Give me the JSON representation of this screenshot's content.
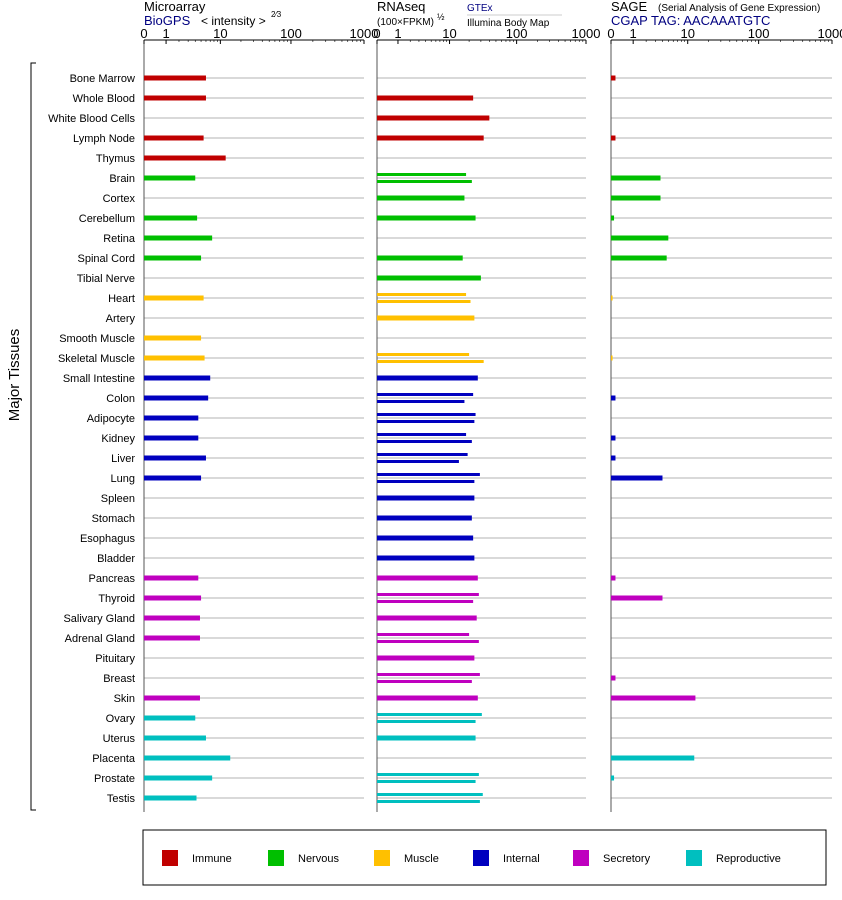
{
  "header": {
    "microarray": {
      "title": "Microarray",
      "source": "BioGPS",
      "scale_label": "< intensity >",
      "scale_exp": "2⁄3"
    },
    "rnaseq": {
      "title": "RNAseq",
      "scale_label": "(100×FPKM)",
      "scale_exp": "½",
      "source1": "GTEx",
      "source2": "Illumina Body Map"
    },
    "sage": {
      "title": "SAGE",
      "subtitle": "(Serial Analysis of Gene Expression)",
      "tag_line": "CGAP TAG: AACAAATGTC"
    }
  },
  "y_axis_label": "Major Tissues",
  "colors": {
    "Immune": "#c00000",
    "Nervous": "#00bf00",
    "Muscle": "#ffc000",
    "Internal": "#0000bf",
    "Secretory": "#bf00bf",
    "Reproductive": "#00bfbf"
  },
  "legend": [
    {
      "label": "Immune",
      "color": "#c00000"
    },
    {
      "label": "Nervous",
      "color": "#00bf00"
    },
    {
      "label": "Muscle",
      "color": "#ffc000"
    },
    {
      "label": "Internal",
      "color": "#0000bf"
    },
    {
      "label": "Secretory",
      "color": "#bf00bf"
    },
    {
      "label": "Reproductive",
      "color": "#00bfbf"
    }
  ],
  "chart_data": [
    {
      "type": "bar",
      "title": "Microarray",
      "xlabel": "< intensity >^(2/3)",
      "xscale": "log",
      "xticks": [
        "0",
        "1",
        "10",
        "100",
        "1000"
      ],
      "categories": [
        "Bone Marrow",
        "Whole Blood",
        "White Blood Cells",
        "Lymph Node",
        "Thymus",
        "Brain",
        "Cortex",
        "Cerebellum",
        "Retina",
        "Spinal Cord",
        "Tibial Nerve",
        "Heart",
        "Artery",
        "Smooth Muscle",
        "Skeletal Muscle",
        "Small Intestine",
        "Colon",
        "Adipocyte",
        "Kidney",
        "Liver",
        "Lung",
        "Spleen",
        "Stomach",
        "Esophagus",
        "Bladder",
        "Pancreas",
        "Thyroid",
        "Salivary Gland",
        "Adrenal Gland",
        "Pituitary",
        "Breast",
        "Skin",
        "Ovary",
        "Uterus",
        "Placenta",
        "Prostate",
        "Testis"
      ],
      "groups": [
        "Immune",
        "Immune",
        "Immune",
        "Immune",
        "Immune",
        "Nervous",
        "Nervous",
        "Nervous",
        "Nervous",
        "Nervous",
        "Nervous",
        "Muscle",
        "Muscle",
        "Muscle",
        "Muscle",
        "Internal",
        "Internal",
        "Internal",
        "Internal",
        "Internal",
        "Internal",
        "Internal",
        "Internal",
        "Internal",
        "Internal",
        "Secretory",
        "Secretory",
        "Secretory",
        "Secretory",
        "Secretory",
        "Secretory",
        "Secretory",
        "Reproductive",
        "Reproductive",
        "Reproductive",
        "Reproductive",
        "Reproductive"
      ],
      "values": [
        [
          6
        ],
        [
          6
        ],
        [],
        [
          5.5
        ],
        [
          12
        ],
        [
          4
        ],
        [],
        [
          4.3
        ],
        [
          7.5
        ],
        [
          5
        ],
        [],
        [
          5.5
        ],
        [],
        [
          5
        ],
        [
          5.7
        ],
        [
          7
        ],
        [
          6.5
        ],
        [
          4.5
        ],
        [
          4.5
        ],
        [
          6
        ],
        [
          5
        ],
        [],
        [],
        [],
        [],
        [
          4.5
        ],
        [
          5
        ],
        [
          4.8
        ],
        [
          4.8
        ],
        [],
        [],
        [
          4.8
        ],
        [
          4
        ],
        [
          6
        ],
        [
          14
        ],
        [
          7.5
        ],
        [
          4.2
        ]
      ]
    },
    {
      "type": "bar",
      "title": "RNAseq",
      "xlabel": "(100×FPKM)^(1/2)",
      "xscale": "log",
      "xticks": [
        "0",
        "1",
        "10",
        "100",
        "1000"
      ],
      "series": [
        "GTEx",
        "Illumina Body Map"
      ],
      "categories": [
        "Bone Marrow",
        "Whole Blood",
        "White Blood Cells",
        "Lymph Node",
        "Thymus",
        "Brain",
        "Cortex",
        "Cerebellum",
        "Retina",
        "Spinal Cord",
        "Tibial Nerve",
        "Heart",
        "Artery",
        "Smooth Muscle",
        "Skeletal Muscle",
        "Small Intestine",
        "Colon",
        "Adipocyte",
        "Kidney",
        "Liver",
        "Lung",
        "Spleen",
        "Stomach",
        "Esophagus",
        "Bladder",
        "Pancreas",
        "Thyroid",
        "Salivary Gland",
        "Adrenal Gland",
        "Pituitary",
        "Breast",
        "Skin",
        "Ovary",
        "Uterus",
        "Placenta",
        "Prostate",
        "Testis"
      ],
      "values": [
        [],
        [
          23
        ],
        [
          40
        ],
        [
          33
        ],
        [],
        [
          18,
          22
        ],
        [
          17
        ],
        [
          25
        ],
        [],
        [
          16
        ],
        [
          30
        ],
        [
          18,
          21
        ],
        [
          24
        ],
        [],
        [
          20,
          33
        ],
        [
          27
        ],
        [
          23,
          17
        ],
        [
          25,
          24
        ],
        [
          18,
          22
        ],
        [
          19,
          14
        ],
        [
          29,
          24
        ],
        [
          24
        ],
        [
          22
        ],
        [
          23
        ],
        [
          24
        ],
        [
          27
        ],
        [
          28,
          23
        ],
        [
          26
        ],
        [
          20,
          28
        ],
        [
          24
        ],
        [
          29,
          22
        ],
        [
          27
        ],
        [
          31,
          25
        ],
        [
          25
        ],
        [],
        [
          28,
          25
        ],
        [
          32,
          29
        ]
      ]
    },
    {
      "type": "bar",
      "title": "SAGE",
      "xlabel": "CGAP TAG: AACAAATGTC",
      "xscale": "log",
      "xticks": [
        "0",
        "1",
        "10",
        "100",
        "1000"
      ],
      "categories": [
        "Bone Marrow",
        "Whole Blood",
        "White Blood Cells",
        "Lymph Node",
        "Thymus",
        "Brain",
        "Cortex",
        "Cerebellum",
        "Retina",
        "Spinal Cord",
        "Tibial Nerve",
        "Heart",
        "Artery",
        "Smooth Muscle",
        "Skeletal Muscle",
        "Small Intestine",
        "Colon",
        "Adipocyte",
        "Kidney",
        "Liver",
        "Lung",
        "Spleen",
        "Stomach",
        "Esophagus",
        "Bladder",
        "Pancreas",
        "Thyroid",
        "Salivary Gland",
        "Adrenal Gland",
        "Pituitary",
        "Breast",
        "Skin",
        "Ovary",
        "Uterus",
        "Placenta",
        "Prostate",
        "Testis"
      ],
      "values": [
        [
          0.15
        ],
        [],
        [],
        [
          0.15
        ],
        [],
        [
          3.7
        ],
        [
          3.7
        ],
        [
          0.1
        ],
        [
          5
        ],
        [
          4.7
        ],
        [],
        [
          0.05
        ],
        [],
        [],
        [
          0.05
        ],
        [],
        [
          0.15
        ],
        [],
        [
          0.15
        ],
        [
          0.15
        ],
        [
          4
        ],
        [],
        [],
        [],
        [],
        [
          0.15
        ],
        [
          4
        ],
        [],
        [],
        [],
        [
          0.15
        ],
        [
          13
        ],
        [],
        [],
        [
          12.5
        ],
        [
          0.1
        ],
        []
      ]
    }
  ]
}
